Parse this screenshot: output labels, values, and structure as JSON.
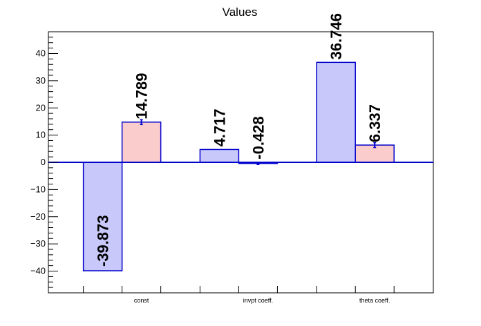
{
  "chart_data": {
    "type": "bar",
    "title": "Values",
    "categories": [
      "const",
      "invpt coeff.",
      "theta coeff."
    ],
    "series": [
      {
        "values": [
          -39.873,
          4.717,
          36.746
        ],
        "color": "#c8c8fa",
        "stroke": "#0000cc",
        "errors": [
          0,
          0,
          0
        ]
      },
      {
        "values": [
          14.789,
          -0.428,
          6.337
        ],
        "color": "#facccc",
        "stroke": "#0000cc",
        "errors": [
          0.9,
          0.4,
          0.9
        ]
      }
    ],
    "data_labels": [
      [
        "-39.873",
        "4.717",
        "36.746"
      ],
      [
        "14.789",
        "-0.428",
        "6.337"
      ]
    ],
    "ylim": [
      -48,
      48
    ],
    "yticks": [
      -40,
      -30,
      -20,
      -10,
      0,
      10,
      20,
      30,
      40
    ],
    "ytick_labels": [
      "−40",
      "−30",
      "−20",
      "−10",
      "0",
      "10",
      "20",
      "30",
      "40"
    ],
    "grid": false,
    "zero_line": true,
    "xlabel": "",
    "ylabel": ""
  }
}
